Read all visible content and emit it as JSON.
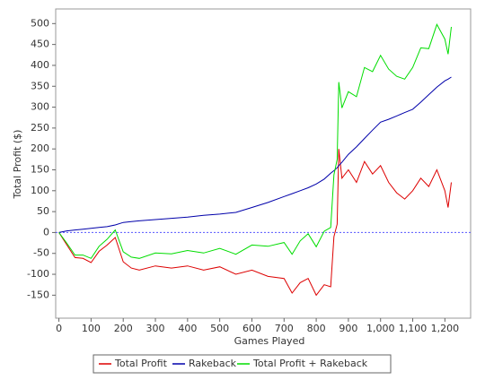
{
  "chart_data": {
    "type": "line",
    "x_label": "Games Played",
    "y_label": "Total Profit ($)",
    "x": [
      0,
      25,
      50,
      75,
      100,
      125,
      150,
      175,
      200,
      225,
      250,
      300,
      350,
      400,
      450,
      500,
      550,
      600,
      650,
      700,
      725,
      750,
      775,
      800,
      825,
      845,
      855,
      865,
      870,
      880,
      900,
      925,
      950,
      975,
      1000,
      1025,
      1050,
      1075,
      1100,
      1125,
      1150,
      1175,
      1200,
      1210,
      1220
    ],
    "series": [
      {
        "name": "Total Profit",
        "color": "#dd0000",
        "values": [
          0,
          -30,
          -60,
          -62,
          -72,
          -45,
          -30,
          -12,
          -70,
          -85,
          -90,
          -80,
          -85,
          -80,
          -90,
          -82,
          -100,
          -90,
          -105,
          -110,
          -145,
          -120,
          -110,
          -150,
          -125,
          -130,
          -10,
          20,
          200,
          130,
          150,
          120,
          170,
          140,
          160,
          120,
          95,
          80,
          100,
          130,
          110,
          150,
          100,
          60,
          120
        ]
      },
      {
        "name": "Rakeback",
        "color": "#0000aa",
        "values": [
          0,
          4,
          6,
          8,
          10,
          12,
          14,
          18,
          24,
          26,
          28,
          31,
          34,
          37,
          41,
          44,
          48,
          60,
          72,
          86,
          93,
          100,
          107,
          116,
          128,
          142,
          148,
          155,
          160,
          168,
          187,
          205,
          225,
          245,
          264,
          271,
          279,
          287,
          295,
          312,
          330,
          348,
          363,
          367,
          372
        ]
      },
      {
        "name": "Total Profit + Rakeback",
        "color": "#00dd00",
        "values": [
          0,
          -26,
          -54,
          -54,
          -62,
          -33,
          -16,
          6,
          -46,
          -59,
          -62,
          -49,
          -51,
          -43,
          -49,
          -38,
          -52,
          -30,
          -33,
          -24,
          -52,
          -20,
          -3,
          -34,
          3,
          12,
          138,
          175,
          360,
          298,
          337,
          325,
          395,
          385,
          424,
          391,
          374,
          367,
          395,
          442,
          440,
          498,
          463,
          427,
          492
        ]
      }
    ],
    "xlim": [
      -10,
      1280
    ],
    "ylim": [
      -205,
      535
    ],
    "xticks": [
      0,
      100,
      200,
      300,
      400,
      500,
      600,
      700,
      800,
      900,
      {
        "value": 1000,
        "label": "1,000"
      },
      {
        "value": 1100,
        "label": "1,100"
      },
      {
        "value": 1200,
        "label": "1,200"
      }
    ],
    "yticks": [
      -150,
      -100,
      -50,
      0,
      50,
      100,
      150,
      200,
      250,
      300,
      350,
      400,
      450,
      500
    ],
    "legend": "bottom"
  }
}
